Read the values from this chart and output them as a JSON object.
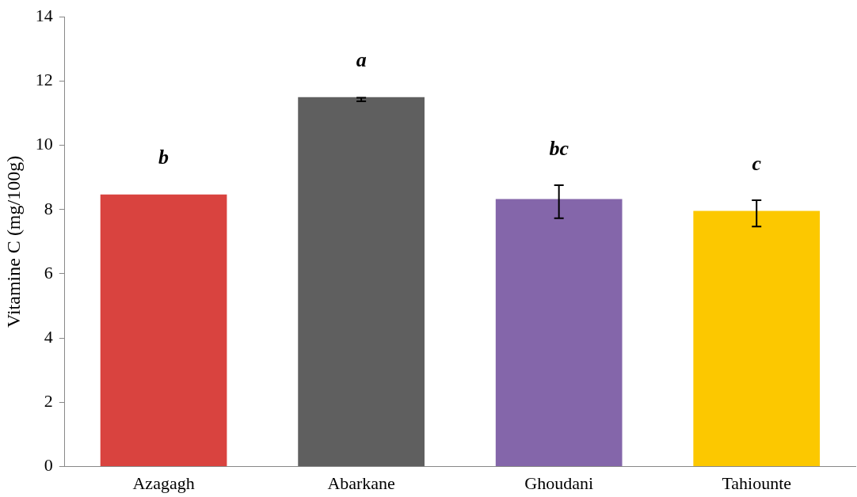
{
  "chart_data": {
    "type": "bar",
    "ylabel": "Vitamine C (mg/100g)",
    "categories": [
      "Azagagh",
      "Abarkane",
      "Ghoudani",
      "Tahiounte"
    ],
    "values": [
      8.47,
      11.5,
      8.33,
      7.96
    ],
    "colors": [
      "#d9433f",
      "#5f5f5f",
      "#8466aa",
      "#fcc800"
    ],
    "errors": [
      null,
      [
        11.37,
        11.48
      ],
      [
        7.73,
        8.76
      ],
      [
        7.47,
        8.29
      ]
    ],
    "ylim": [
      0,
      14
    ],
    "yticks": [
      0,
      2,
      4,
      6,
      8,
      10,
      12,
      14
    ],
    "grid": false,
    "legend": false,
    "annotations": [
      "b",
      "a",
      "bc",
      "c"
    ]
  }
}
